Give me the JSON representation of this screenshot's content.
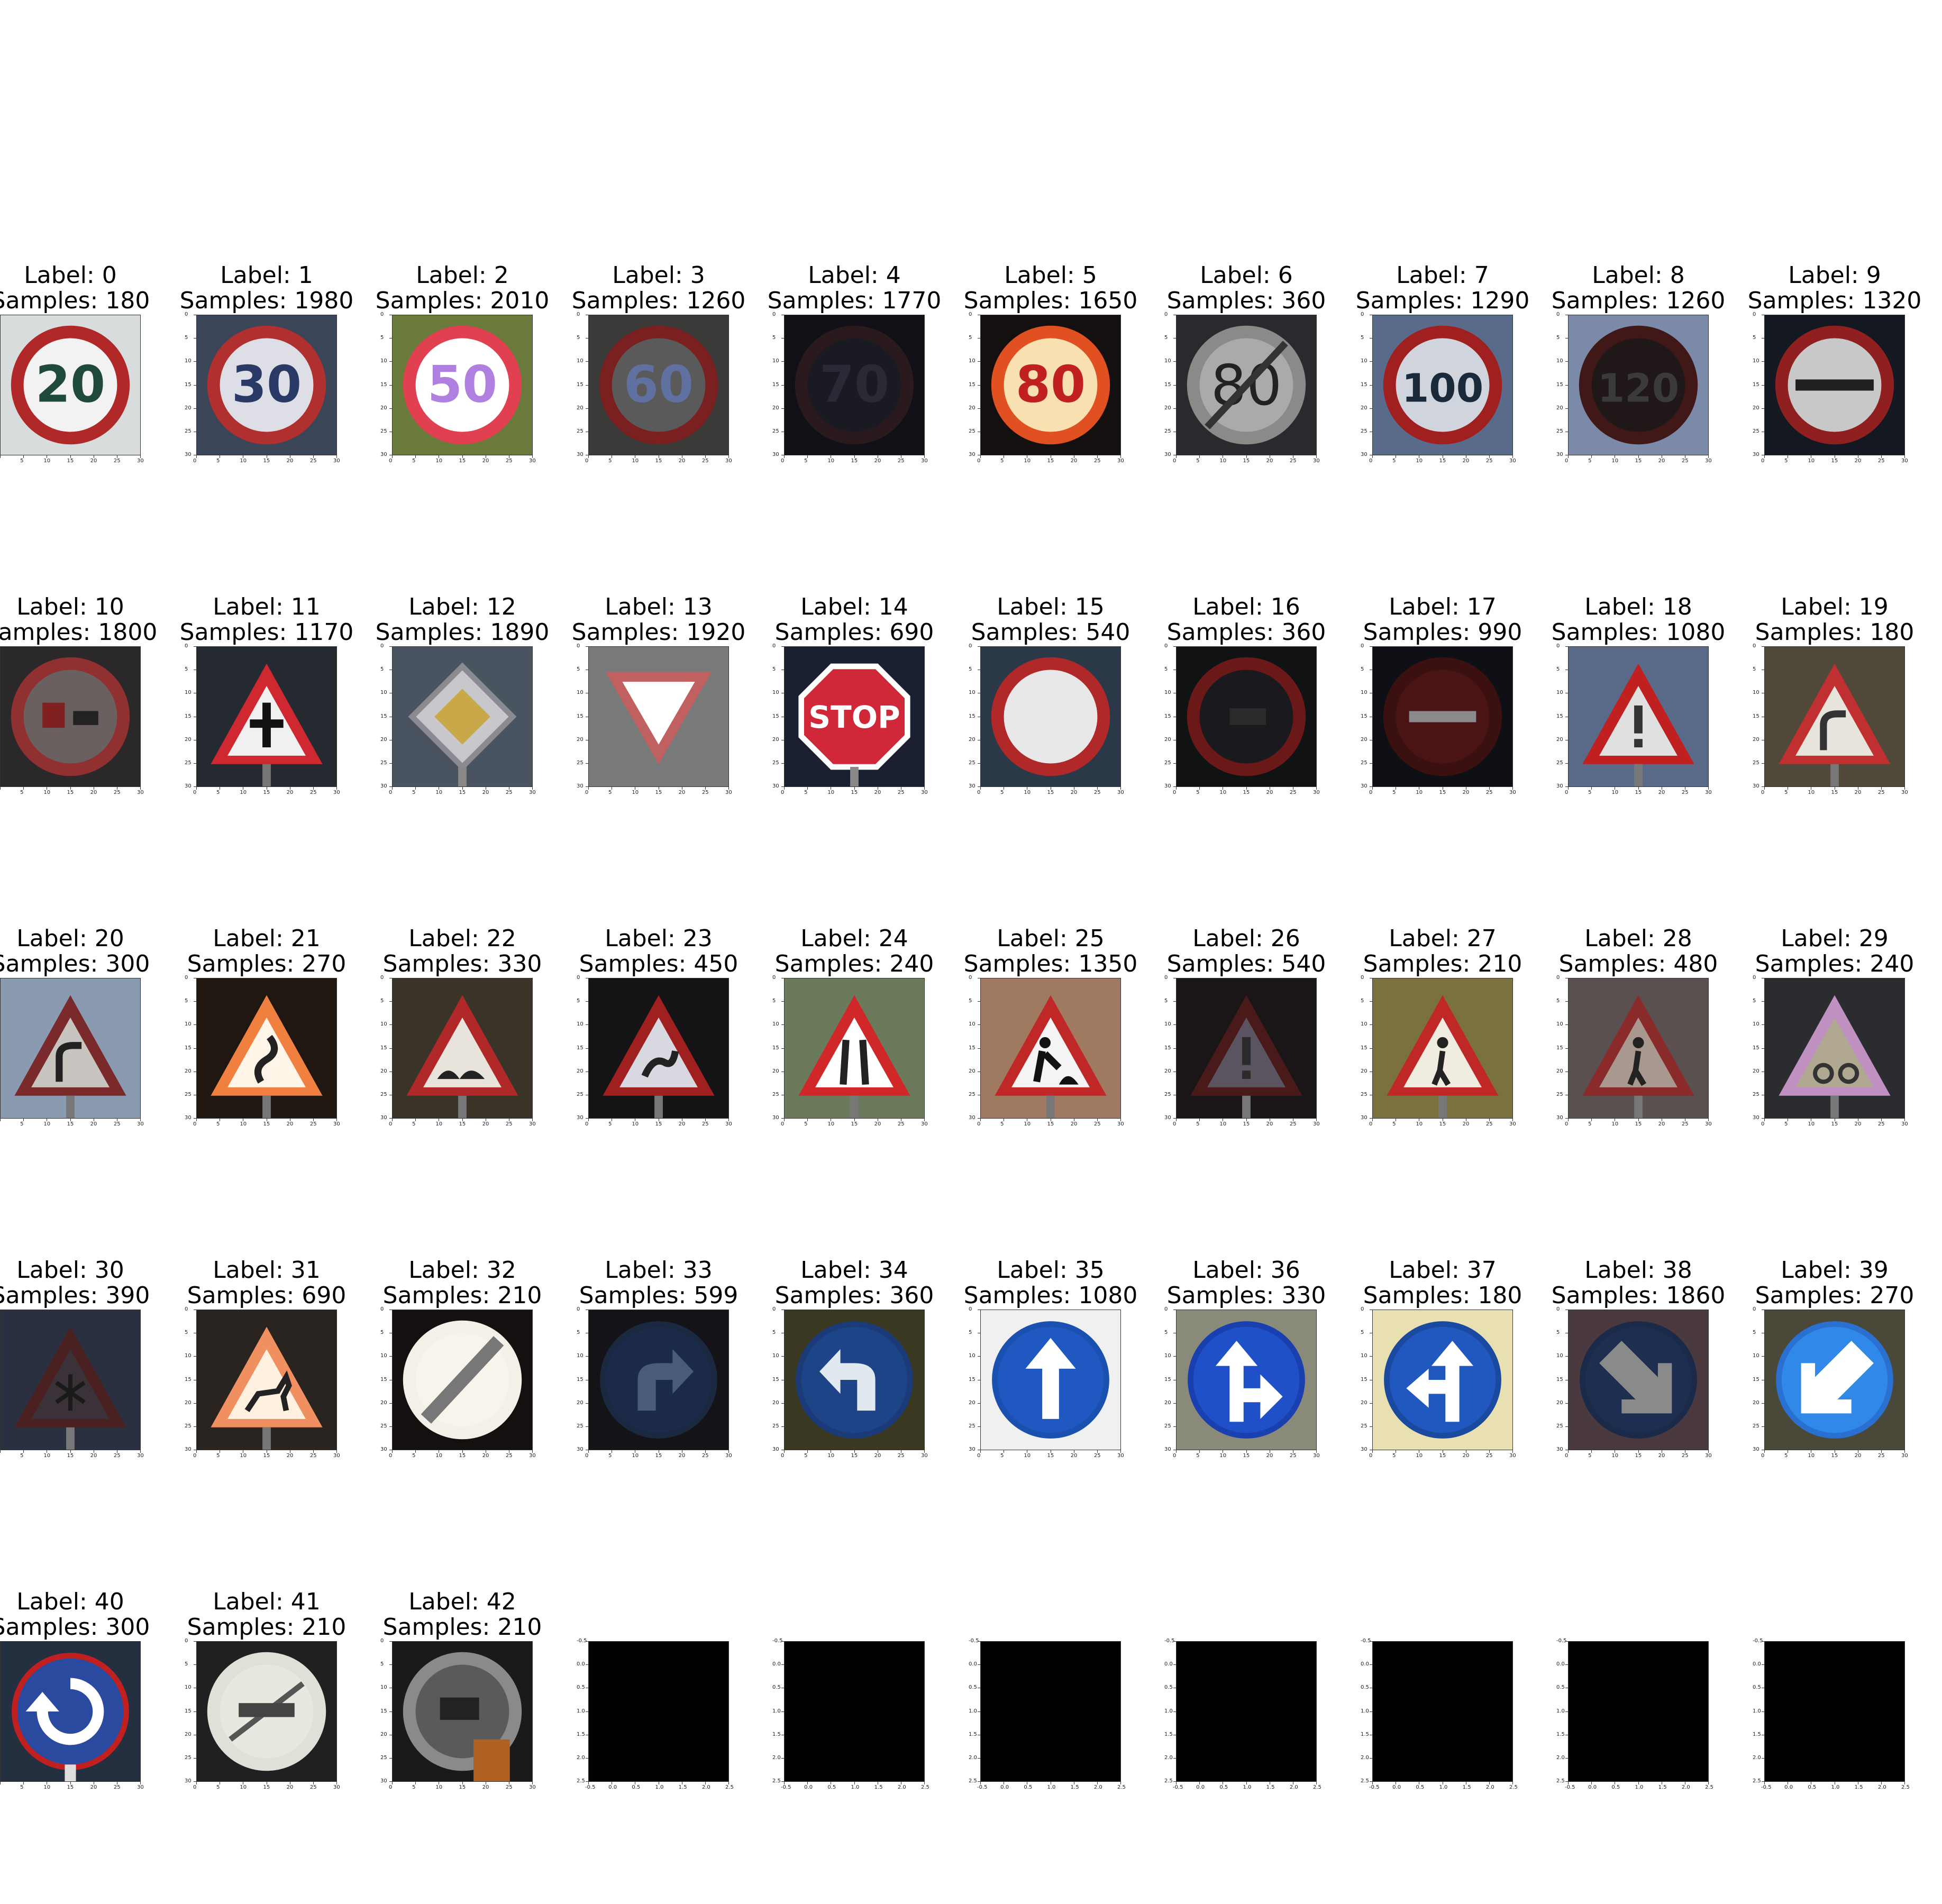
{
  "figure": {
    "cells": [
      {
        "label": "Label: 0",
        "samples": "Samples: 180",
        "kind": "circle-text",
        "bg": "#d8dcdc",
        "ring": "#b02828",
        "fill": "#f2f2f2",
        "sym": "20",
        "symcolor": "#1f4a3a"
      },
      {
        "label": "Label: 1",
        "samples": "Samples: 1980",
        "kind": "circle-text",
        "bg": "#3a4658",
        "ring": "#b03030",
        "fill": "#dedfe6",
        "sym": "30",
        "symcolor": "#2a3a66"
      },
      {
        "label": "Label: 2",
        "samples": "Samples: 2010",
        "kind": "circle-text",
        "bg": "#6a7a3a",
        "ring": "#e04050",
        "fill": "#ffffff",
        "sym": "50",
        "symcolor": "#b080e0"
      },
      {
        "label": "Label: 3",
        "samples": "Samples: 1260",
        "kind": "circle-text",
        "bg": "#3a3a38",
        "ring": "#7a2020",
        "fill": "#5a5a5a",
        "sym": "60",
        "symcolor": "#6070a0"
      },
      {
        "label": "Label: 4",
        "samples": "Samples: 1770",
        "kind": "circle-text",
        "bg": "#101016",
        "ring": "#2a1a1e",
        "fill": "#1a1a22",
        "sym": "70",
        "symcolor": "#2a2a36"
      },
      {
        "label": "Label: 5",
        "samples": "Samples: 1650",
        "kind": "circle-text",
        "bg": "#141010",
        "ring": "#e05020",
        "fill": "#f8e0b0",
        "sym": "80",
        "symcolor": "#c02020"
      },
      {
        "label": "Label: 6",
        "samples": "Samples: 360",
        "kind": "circle-end",
        "bg": "#2a2a2e",
        "ring": "#8a8a88",
        "fill": "#aaaaaa",
        "sym": "80",
        "symcolor": "#222222"
      },
      {
        "label": "Label: 7",
        "samples": "Samples: 1290",
        "kind": "circle-text",
        "bg": "#5a6a8a",
        "ring": "#a02020",
        "fill": "#d0d4dc",
        "sym": "100",
        "symcolor": "#1a2a3a"
      },
      {
        "label": "Label: 8",
        "samples": "Samples: 1260",
        "kind": "circle-text",
        "bg": "#7a8aa8",
        "ring": "#401818",
        "fill": "#201818",
        "sym": "120",
        "symcolor": "#3a3a3a"
      },
      {
        "label": "Label: 9",
        "samples": "Samples: 1320",
        "kind": "circle-bar",
        "bg": "#141820",
        "ring": "#902020",
        "fill": "#c8c8c8",
        "sym": "",
        "symcolor": "#202020"
      },
      {
        "label": "Label: 10",
        "samples": "Samples: 1800",
        "kind": "circle-truck",
        "bg": "#2a2828",
        "ring": "#903030",
        "fill": "#6a6060",
        "sym": "",
        "symcolor": "#802020"
      },
      {
        "label": "Label: 11",
        "samples": "Samples: 1170",
        "kind": "tri-cross",
        "bg": "#242a30",
        "ring": "#d02830",
        "fill": "#f0f0f0",
        "sym": "",
        "symcolor": "#111111"
      },
      {
        "label": "Label: 12",
        "samples": "Samples: 1890",
        "kind": "diamond",
        "bg": "#4a5460",
        "ring": "#8a8a90",
        "fill": "#c8a848",
        "sym": "",
        "symcolor": "#333333"
      },
      {
        "label": "Label: 13",
        "samples": "Samples: 1920",
        "kind": "yield",
        "bg": "#787a7a",
        "ring": "#c06060",
        "fill": "#d0d0d0",
        "sym": "",
        "symcolor": "#ffffff"
      },
      {
        "label": "Label: 14",
        "samples": "Samples: 690",
        "kind": "stop",
        "bg": "#1a2030",
        "ring": "#ffffff",
        "fill": "#d02838",
        "sym": "STOP",
        "symcolor": "#ffffff"
      },
      {
        "label": "Label: 15",
        "samples": "Samples: 540",
        "kind": "circle-empty",
        "bg": "#2a3848",
        "ring": "#b02828",
        "fill": "#e8e8e8",
        "sym": "",
        "symcolor": "#000"
      },
      {
        "label": "Label: 16",
        "samples": "Samples: 360",
        "kind": "circle-truck2",
        "bg": "#101214",
        "ring": "#6a1818",
        "fill": "#1a1a1e",
        "sym": "",
        "symcolor": "#2a2a2a"
      },
      {
        "label": "Label: 17",
        "samples": "Samples: 990",
        "kind": "noentry",
        "bg": "#0e1016",
        "ring": "#3a1010",
        "fill": "#4a1414",
        "sym": "",
        "symcolor": "#8a8a8a"
      },
      {
        "label": "Label: 18",
        "samples": "Samples: 1080",
        "kind": "tri-excl",
        "bg": "#586a88",
        "ring": "#c02020",
        "fill": "#e0e0e0",
        "sym": "",
        "symcolor": "#333333"
      },
      {
        "label": "Label: 19",
        "samples": "Samples: 180",
        "kind": "tri-curve",
        "bg": "#504838",
        "ring": "#c03030",
        "fill": "#e8e4dc",
        "sym": "",
        "symcolor": "#333333"
      },
      {
        "label": "Label: 20",
        "samples": "Samples: 300",
        "kind": "tri-curve",
        "bg": "#8a9ab0",
        "ring": "#7a2a2a",
        "fill": "#c8c4c0",
        "sym": "",
        "symcolor": "#222222"
      },
      {
        "label": "Label: 21",
        "samples": "Samples: 270",
        "kind": "tri-double",
        "bg": "#201810",
        "ring": "#f08040",
        "fill": "#fff4e8",
        "sym": "",
        "symcolor": "#222222"
      },
      {
        "label": "Label: 22",
        "samples": "Samples: 330",
        "kind": "tri-bump",
        "bg": "#3a3428",
        "ring": "#b02828",
        "fill": "#e8e4dc",
        "sym": "",
        "symcolor": "#222222"
      },
      {
        "label": "Label: 23",
        "samples": "Samples: 450",
        "kind": "tri-slip",
        "bg": "#141416",
        "ring": "#a02020",
        "fill": "#d8d8e0",
        "sym": "",
        "symcolor": "#222222"
      },
      {
        "label": "Label: 24",
        "samples": "Samples: 240",
        "kind": "tri-narrow",
        "bg": "#6a7a5a",
        "ring": "#d02828",
        "fill": "#ffffff",
        "sym": "",
        "symcolor": "#222222"
      },
      {
        "label": "Label: 25",
        "samples": "Samples: 1350",
        "kind": "tri-work",
        "bg": "#a07a60",
        "ring": "#c02828",
        "fill": "#f4f4f4",
        "sym": "",
        "symcolor": "#111111"
      },
      {
        "label": "Label: 26",
        "samples": "Samples: 540",
        "kind": "tri-excl",
        "bg": "#1a1618",
        "ring": "#4a1a1a",
        "fill": "#5a5460",
        "sym": "",
        "symcolor": "#2a2a2a"
      },
      {
        "label": "Label: 27",
        "samples": "Samples: 210",
        "kind": "tri-ped",
        "bg": "#7a7040",
        "ring": "#c02828",
        "fill": "#f0ece0",
        "sym": "",
        "symcolor": "#222222"
      },
      {
        "label": "Label: 28",
        "samples": "Samples: 480",
        "kind": "tri-ped",
        "bg": "#5a5050",
        "ring": "#8a2a2a",
        "fill": "#a89890",
        "sym": "",
        "symcolor": "#222222"
      },
      {
        "label": "Label: 29",
        "samples": "Samples: 240",
        "kind": "tri-bike",
        "bg": "#2a2c30",
        "ring": "#c090c0",
        "fill": "#b0a890",
        "sym": "",
        "symcolor": "#333333"
      },
      {
        "label": "Label: 30",
        "samples": "Samples: 390",
        "kind": "tri-snow",
        "bg": "#2a3040",
        "ring": "#4a2020",
        "fill": "#3a3238",
        "sym": "",
        "symcolor": "#1a1a1a"
      },
      {
        "label": "Label: 31",
        "samples": "Samples: 690",
        "kind": "tri-deer",
        "bg": "#2a2420",
        "ring": "#f09060",
        "fill": "#fff0e0",
        "sym": "",
        "symcolor": "#222222"
      },
      {
        "label": "Label: 32",
        "samples": "Samples: 210",
        "kind": "end-all",
        "bg": "#141010",
        "ring": "#f4f0e8",
        "fill": "#f8f4ec",
        "sym": "",
        "symcolor": "#555555"
      },
      {
        "label": "Label: 33",
        "samples": "Samples: 599",
        "kind": "blue-right",
        "bg": "#141418",
        "ring": "#1a2840",
        "fill": "#1a2a48",
        "sym": "",
        "symcolor": "#4a5a7a"
      },
      {
        "label": "Label: 34",
        "samples": "Samples: 360",
        "kind": "blue-left",
        "bg": "#3a3820",
        "ring": "#1a3a78",
        "fill": "#1e4488",
        "sym": "",
        "symcolor": "#e0e8f0"
      },
      {
        "label": "Label: 35",
        "samples": "Samples: 1080",
        "kind": "blue-up",
        "bg": "#f0f0f0",
        "ring": "#1a50b0",
        "fill": "#1e58c0",
        "sym": "",
        "symcolor": "#ffffff"
      },
      {
        "label": "Label: 36",
        "samples": "Samples: 330",
        "kind": "blue-upright",
        "bg": "#8a8a7a",
        "ring": "#1a40b0",
        "fill": "#2050c8",
        "sym": "",
        "symcolor": "#ffffff"
      },
      {
        "label": "Label: 37",
        "samples": "Samples: 180",
        "kind": "blue-upleft",
        "bg": "#e8e0b0",
        "ring": "#1a4aa0",
        "fill": "#2058c0",
        "sym": "",
        "symcolor": "#ffffff"
      },
      {
        "label": "Label: 38",
        "samples": "Samples: 1860",
        "kind": "blue-keepright",
        "bg": "#4a3a40",
        "ring": "#1a2a48",
        "fill": "#1e2e50",
        "sym": "",
        "symcolor": "#8a8a8a"
      },
      {
        "label": "Label: 39",
        "samples": "Samples: 270",
        "kind": "blue-keepleft",
        "bg": "#4a4838",
        "ring": "#2a70d0",
        "fill": "#3088e8",
        "sym": "",
        "symcolor": "#ffffff"
      },
      {
        "label": "Label: 40",
        "samples": "Samples: 300",
        "kind": "blue-round",
        "bg": "#243040",
        "ring": "#c02020",
        "fill": "#2a4aa0",
        "sym": "",
        "symcolor": "#ffffff"
      },
      {
        "label": "Label: 41",
        "samples": "Samples: 210",
        "kind": "end-pass",
        "bg": "#202020",
        "ring": "#e0e0d8",
        "fill": "#e8e8e0",
        "sym": "",
        "symcolor": "#333333"
      },
      {
        "label": "Label: 42",
        "samples": "Samples: 210",
        "kind": "end-trucks",
        "bg": "#1a1a18",
        "ring": "#8a8a88",
        "fill": "#5a5a58",
        "sym": "",
        "symcolor": "#222222"
      },
      {
        "label": "",
        "samples": "",
        "kind": "empty"
      },
      {
        "label": "",
        "samples": "",
        "kind": "empty"
      },
      {
        "label": "",
        "samples": "",
        "kind": "empty"
      },
      {
        "label": "",
        "samples": "",
        "kind": "empty"
      },
      {
        "label": "",
        "samples": "",
        "kind": "empty"
      },
      {
        "label": "",
        "samples": "",
        "kind": "empty"
      },
      {
        "label": "",
        "samples": "",
        "kind": "empty"
      }
    ],
    "xticks_image": [
      "0",
      "5",
      "10",
      "15",
      "20",
      "25",
      "30"
    ],
    "yticks_image": [
      "0",
      "5",
      "10",
      "15",
      "20",
      "25",
      "30"
    ],
    "xticks_empty": [
      "-0.5",
      "0.0",
      "0.5",
      "1.0",
      "1.5",
      "2.0",
      "2.5"
    ],
    "yticks_empty": [
      "-0.5",
      "0.0",
      "0.5",
      "1.0",
      "1.5",
      "2.0",
      "2.5"
    ]
  }
}
